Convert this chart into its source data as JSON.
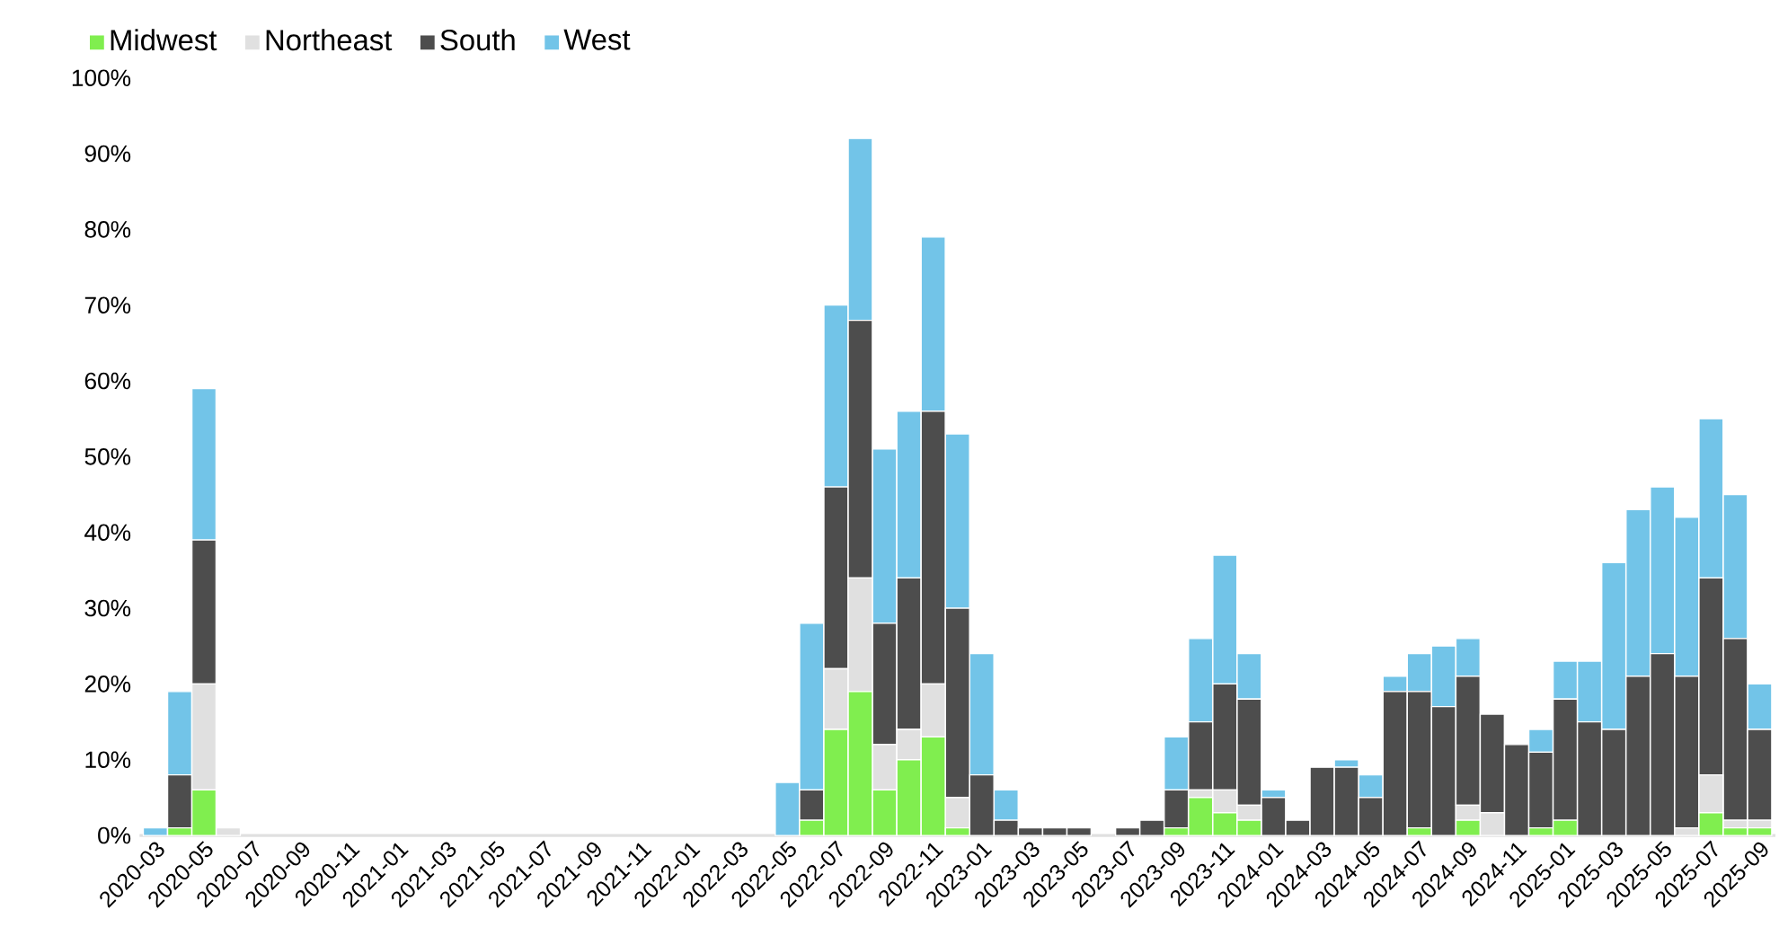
{
  "chart_data": {
    "type": "bar",
    "stacked": true,
    "legend": "top left",
    "categories": [
      "2020-03",
      null,
      "2020-05",
      null,
      "2020-07",
      null,
      "2020-09",
      null,
      "2020-11",
      null,
      "2021-01",
      null,
      "2021-03",
      null,
      "2021-05",
      null,
      "2021-07",
      null,
      "2021-09",
      null,
      "2021-11",
      null,
      "2022-01",
      null,
      "2022-03",
      null,
      "2022-05",
      null,
      "2022-07",
      null,
      "2022-09",
      null,
      "2022-11",
      null,
      "2023-01",
      null,
      "2023-03",
      null,
      "2023-05",
      null,
      "2023-07",
      null,
      "2023-09",
      null,
      "2023-11",
      null,
      "2024-01",
      null,
      "2024-03",
      null,
      "2024-05",
      null,
      "2024-07",
      null,
      "2024-09",
      null,
      "2024-11",
      null,
      "2025-01",
      null,
      "2025-03",
      null,
      "2025-05",
      null,
      "2025-07",
      null,
      "2025-09"
    ],
    "ylim": [
      0,
      100
    ],
    "yticks": [
      {
        "value": 0,
        "label": "0%"
      },
      {
        "value": 10,
        "label": "10%"
      },
      {
        "value": 20,
        "label": "20%"
      },
      {
        "value": 30,
        "label": "30%"
      },
      {
        "value": 40,
        "label": "40%"
      },
      {
        "value": 50,
        "label": "50%"
      },
      {
        "value": 60,
        "label": "60%"
      },
      {
        "value": 70,
        "label": "70%"
      },
      {
        "value": 80,
        "label": "80%"
      },
      {
        "value": 90,
        "label": "90%"
      },
      {
        "value": 100,
        "label": "100%"
      }
    ],
    "series": [
      {
        "name": "Midwest",
        "color": "#80ee4f",
        "values": [
          0,
          1,
          6,
          0,
          0,
          0,
          0,
          0,
          0,
          0,
          0,
          0,
          0,
          0,
          0,
          0,
          0,
          0,
          0,
          0,
          0,
          0,
          0,
          0,
          0,
          0,
          0,
          2,
          14,
          19,
          6,
          10,
          13,
          1,
          0,
          0,
          0,
          0,
          0,
          0,
          0,
          0,
          1,
          5,
          3,
          2,
          0,
          0,
          0,
          0,
          0,
          0,
          1,
          0,
          2,
          0,
          0,
          1,
          2,
          0,
          0,
          0,
          0,
          0,
          3,
          1,
          1
        ]
      },
      {
        "name": "Northeast",
        "color": "#e0e0e0",
        "values": [
          0,
          0,
          14,
          1,
          0,
          0,
          0,
          0,
          0,
          0,
          0,
          0,
          0,
          0,
          0,
          0,
          0,
          0,
          0,
          0,
          0,
          0,
          0,
          0,
          0,
          0,
          0,
          0,
          8,
          15,
          6,
          4,
          7,
          4,
          0,
          0,
          0,
          0,
          0,
          0,
          0,
          0,
          0,
          1,
          3,
          2,
          0,
          0,
          0,
          0,
          0,
          0,
          0,
          0,
          2,
          3,
          0,
          0,
          0,
          0,
          0,
          0,
          0,
          1,
          5,
          1,
          1
        ]
      },
      {
        "name": "South",
        "color": "#4d4d4d",
        "values": [
          0,
          7,
          19,
          0,
          0,
          0,
          0,
          0,
          0,
          0,
          0,
          0,
          0,
          0,
          0,
          0,
          0,
          0,
          0,
          0,
          0,
          0,
          0,
          0,
          0,
          0,
          0,
          4,
          24,
          34,
          16,
          20,
          36,
          25,
          8,
          2,
          1,
          1,
          1,
          0,
          1,
          2,
          5,
          9,
          14,
          14,
          5,
          2,
          9,
          9,
          5,
          19,
          18,
          17,
          17,
          13,
          12,
          10,
          16,
          15,
          14,
          21,
          24,
          20,
          26,
          24,
          12
        ]
      },
      {
        "name": "West",
        "color": "#72c4e8",
        "values": [
          1,
          11,
          20,
          0,
          0,
          0,
          0,
          0,
          0,
          0,
          0,
          0,
          0,
          0,
          0,
          0,
          0,
          0,
          0,
          0,
          0,
          0,
          0,
          0,
          0,
          0,
          7,
          22,
          24,
          24,
          23,
          22,
          23,
          23,
          16,
          4,
          0,
          0,
          0,
          0,
          0,
          0,
          7,
          11,
          17,
          6,
          1,
          0,
          0,
          1,
          3,
          2,
          5,
          8,
          5,
          0,
          0,
          3,
          5,
          8,
          22,
          22,
          22,
          21,
          21,
          19,
          6
        ]
      }
    ]
  }
}
